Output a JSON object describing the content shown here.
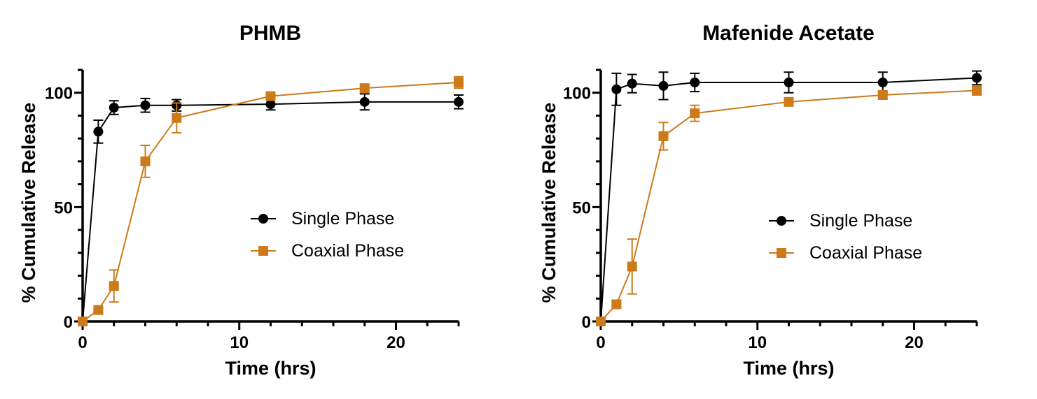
{
  "chart_data": [
    {
      "type": "line",
      "title": "PHMB",
      "xlabel": "Time (hrs)",
      "ylabel": "% Cumulative Release",
      "xlim": [
        0,
        24
      ],
      "ylim": [
        0,
        110
      ],
      "xticks": [
        0,
        10,
        20
      ],
      "yticks": [
        0,
        50,
        100
      ],
      "legend_position": "center-right",
      "series": [
        {
          "name": "Single Phase",
          "color": "#000000",
          "marker": "circle",
          "x": [
            0,
            1,
            2,
            4,
            6,
            12,
            18,
            24
          ],
          "y": [
            0,
            83,
            93.5,
            94.5,
            94.5,
            95,
            96,
            96
          ],
          "error": [
            0,
            5,
            3,
            3,
            2.5,
            2.5,
            3.5,
            3
          ]
        },
        {
          "name": "Coaxial Phase",
          "color": "#CC7A1A",
          "marker": "square",
          "x": [
            0,
            1,
            2,
            4,
            6,
            12,
            18,
            24
          ],
          "y": [
            0,
            5,
            15.5,
            70,
            89,
            98.5,
            102,
            104.5
          ],
          "error": [
            0,
            1,
            7,
            7,
            6.5,
            1.5,
            1.5,
            2.5
          ]
        }
      ]
    },
    {
      "type": "line",
      "title": "Mafenide Acetate",
      "xlabel": "Time (hrs)",
      "ylabel": "% Cumulative Release",
      "xlim": [
        0,
        24
      ],
      "ylim": [
        0,
        110
      ],
      "xticks": [
        0,
        10,
        20
      ],
      "yticks": [
        0,
        50,
        100
      ],
      "legend_position": "center-right",
      "series": [
        {
          "name": "Single Phase",
          "color": "#000000",
          "marker": "circle",
          "x": [
            0,
            1,
            2,
            4,
            6,
            12,
            18,
            24
          ],
          "y": [
            0,
            101.5,
            104,
            103,
            104.5,
            104.5,
            104.5,
            106.5
          ],
          "error": [
            0,
            7,
            4,
            6,
            4,
            4.5,
            4.5,
            3
          ]
        },
        {
          "name": "Coaxial Phase",
          "color": "#CC7A1A",
          "marker": "square",
          "x": [
            0,
            1,
            2,
            4,
            6,
            12,
            18,
            24
          ],
          "y": [
            0,
            7.5,
            24,
            81,
            91,
            96,
            99,
            101
          ],
          "error": [
            0,
            1,
            12,
            6,
            3.5,
            1.5,
            1.5,
            2
          ]
        }
      ]
    }
  ]
}
